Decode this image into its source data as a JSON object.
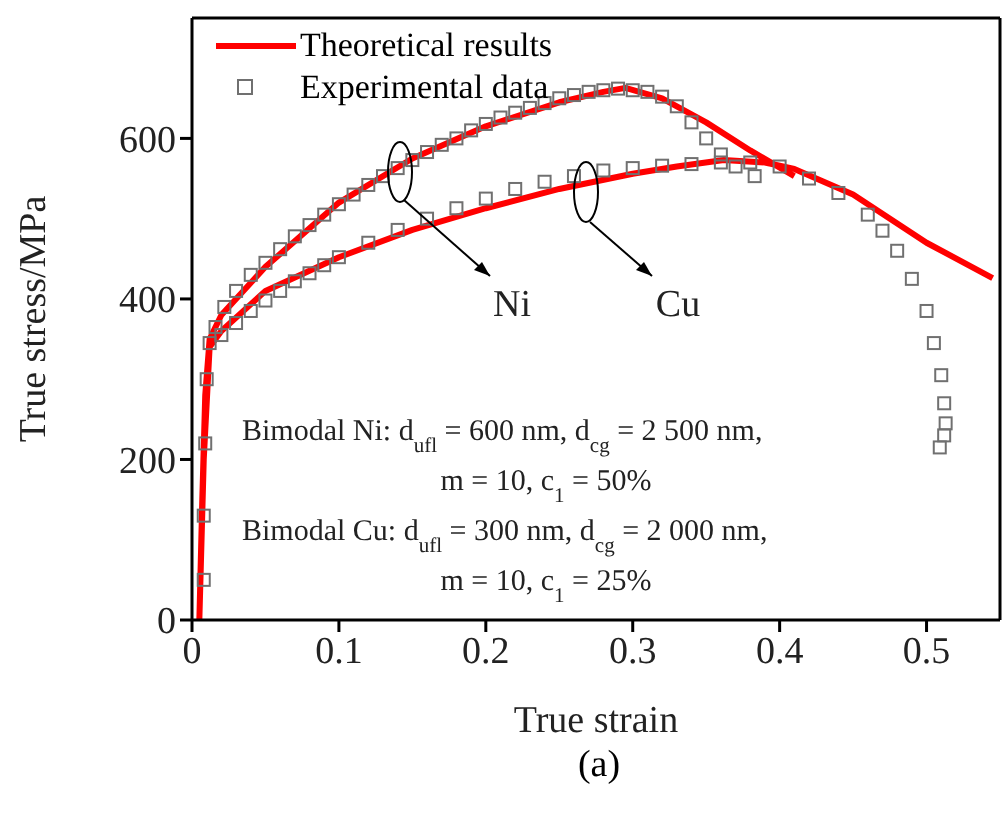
{
  "chart_data": {
    "type": "line",
    "xlabel": "True strain",
    "ylabel": "True stress/MPa",
    "xlim": [
      0,
      0.55
    ],
    "ylim": [
      0,
      750
    ],
    "xticks": [
      0,
      0.1,
      0.2,
      0.3,
      0.4,
      0.5
    ],
    "yticks": [
      0,
      200,
      400,
      600
    ],
    "grid": false,
    "legend": "top left",
    "annotations": [
      "Ni",
      "Cu",
      "Bimodal Ni: d$_{ufl}$ = 600 nm, d$_{cg}$ = 2 500 nm,",
      "m = 10, c$_{1}$ = 50%",
      "Bimodal Cu: d$_{ufl}$ = 300 nm, d$_{cg}$ = 2 000 nm,",
      "m = 10, c$_{1}$ = 25%",
      "(a)"
    ],
    "series": [
      {
        "name": "Theoretical results",
        "color": "#ff0000",
        "marker": "none",
        "line_style": "solid",
        "x": [
          0.005,
          0.007,
          0.009,
          0.012,
          0.02,
          0.05,
          0.1,
          0.15,
          0.2,
          0.25,
          0.28,
          0.295,
          0.32,
          0.35,
          0.38,
          0.41,
          null,
          0.005,
          0.008,
          0.012,
          0.02,
          0.05,
          0.1,
          0.15,
          0.2,
          0.25,
          0.3,
          0.33,
          0.362,
          0.39,
          0.41,
          0.45,
          0.5,
          0.545
        ],
        "values": [
          0,
          150,
          280,
          350,
          380,
          440,
          520,
          575,
          615,
          645,
          658,
          663,
          650,
          620,
          585,
          553,
          null,
          0,
          200,
          340,
          360,
          410,
          452,
          486,
          513,
          537,
          556,
          565,
          573,
          570,
          562,
          530,
          470,
          426
        ]
      },
      {
        "name": "Experimental data",
        "type": "scatter",
        "color": "#707070",
        "marker": "square",
        "x": [
          0.008,
          0.008,
          0.009,
          0.01,
          0.012,
          0.016,
          0.022,
          0.03,
          0.04,
          0.05,
          0.06,
          0.07,
          0.08,
          0.09,
          0.1,
          0.11,
          0.12,
          0.13,
          0.14,
          0.15,
          0.16,
          0.17,
          0.18,
          0.19,
          0.2,
          0.21,
          0.22,
          0.23,
          0.24,
          0.25,
          0.26,
          0.27,
          0.28,
          0.29,
          0.3,
          0.31,
          0.32,
          0.33,
          0.34,
          0.35,
          0.36,
          0.37,
          0.383,
          0.02,
          0.03,
          0.04,
          0.05,
          0.06,
          0.07,
          0.08,
          0.09,
          0.1,
          0.12,
          0.14,
          0.16,
          0.18,
          0.2,
          0.22,
          0.24,
          0.26,
          0.28,
          0.3,
          0.32,
          0.34,
          0.36,
          0.38,
          0.4,
          0.42,
          0.44,
          0.46,
          0.47,
          0.48,
          0.49,
          0.5,
          0.505,
          0.51,
          0.512,
          0.513,
          0.512,
          0.509
        ],
        "values": [
          50,
          130,
          220,
          300,
          345,
          365,
          390,
          410,
          430,
          445,
          462,
          478,
          492,
          505,
          518,
          530,
          542,
          553,
          563,
          573,
          583,
          592,
          600,
          610,
          618,
          626,
          632,
          638,
          644,
          650,
          654,
          658,
          660,
          662,
          660,
          658,
          652,
          640,
          620,
          600,
          580,
          565,
          553,
          355,
          370,
          385,
          398,
          410,
          422,
          432,
          442,
          452,
          470,
          486,
          500,
          513,
          525,
          537,
          546,
          553,
          560,
          563,
          566,
          568,
          570,
          570,
          565,
          550,
          532,
          505,
          485,
          460,
          425,
          385,
          345,
          305,
          270,
          245,
          230,
          215
        ]
      }
    ]
  }
}
